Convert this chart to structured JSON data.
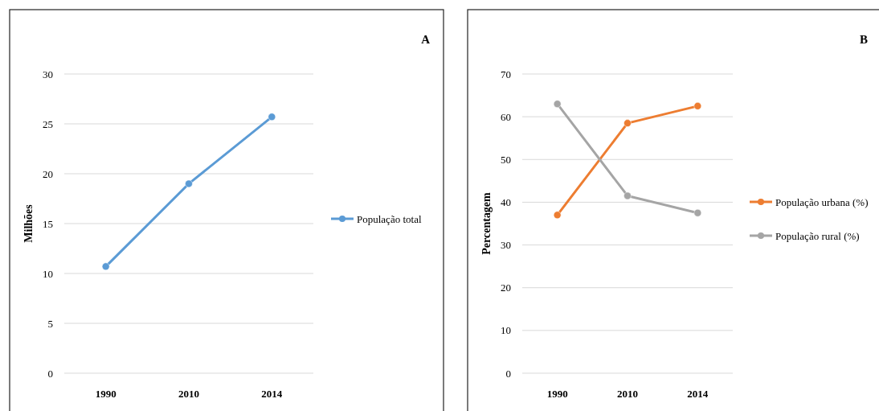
{
  "chart_data": [
    {
      "type": "line",
      "annotations": [
        "A"
      ],
      "ylabel": "Milhões",
      "categories": [
        "1990",
        "2010",
        "2014"
      ],
      "series": [
        {
          "name": "População total",
          "color": "#5b9bd5",
          "values": [
            10.7,
            19.0,
            25.7
          ]
        }
      ],
      "ylim": [
        0,
        30
      ],
      "yticks": [
        0,
        5,
        10,
        15,
        20,
        25,
        30
      ],
      "grid": "y",
      "legend": "right",
      "marker": "circle"
    },
    {
      "type": "line",
      "annotations": [
        "B"
      ],
      "ylabel": "Percentagem",
      "categories": [
        "1990",
        "2010",
        "2014"
      ],
      "series": [
        {
          "name": "População urbana (%)",
          "color": "#ed7d31",
          "values": [
            37,
            58.5,
            62.5
          ]
        },
        {
          "name": "População rural (%)",
          "color": "#a5a5a5",
          "values": [
            63,
            41.5,
            37.5
          ]
        }
      ],
      "ylim": [
        0,
        70
      ],
      "yticks": [
        0,
        10,
        20,
        30,
        40,
        50,
        60,
        70
      ],
      "grid": "y",
      "legend": "right",
      "marker": "circle"
    }
  ]
}
